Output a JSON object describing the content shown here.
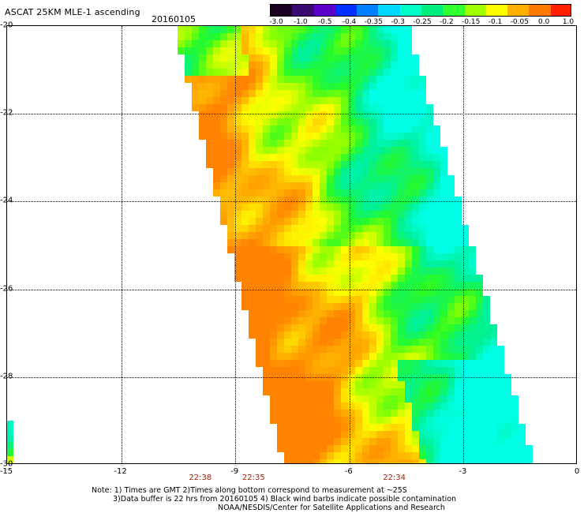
{
  "header": {
    "title": "ASCAT 25KM MLE-1 ascending",
    "date": "20160105"
  },
  "colorbar": {
    "ticks": [
      "-3.0",
      "-1.0",
      "-0.5",
      "-0.4",
      "-0.35",
      "-0.3",
      "-0.25",
      "-0.2",
      "-0.15",
      "-0.1",
      "-0.05",
      "0.0",
      "1.0"
    ],
    "colors": [
      "#1a0020",
      "#3a0a70",
      "#5a00c8",
      "#0030ff",
      "#0080ff",
      "#00d8ff",
      "#00ffc8",
      "#00f080",
      "#30ff30",
      "#a0ff00",
      "#ffff00",
      "#ffb000",
      "#ff7a00",
      "#ff2000"
    ]
  },
  "map": {
    "x_ticks": [
      "-15",
      "-12",
      "-9",
      "-6",
      "-3",
      "0"
    ],
    "y_ticks": [
      "-20",
      "-22",
      "-24",
      "-26",
      "-28",
      "-30"
    ],
    "lon_range": [
      -15,
      0
    ],
    "lat_range": [
      -30,
      -20
    ],
    "times": [
      {
        "label": "22:38",
        "lon": -9.9
      },
      {
        "label": "22:35",
        "lon": -8.5
      },
      {
        "label": "22:34",
        "lon": -4.8
      }
    ]
  },
  "notes": {
    "line1": "Note: 1) Times are GMT 2)Times along bottom correspond to measurement at ~25S",
    "line2": "3)Data buffer is 22 hrs from 20160105 4) Black wind barbs indicate possible contamination",
    "line3": "NOAA/NESDIS/Center for Satellite Applications and Research"
  }
}
